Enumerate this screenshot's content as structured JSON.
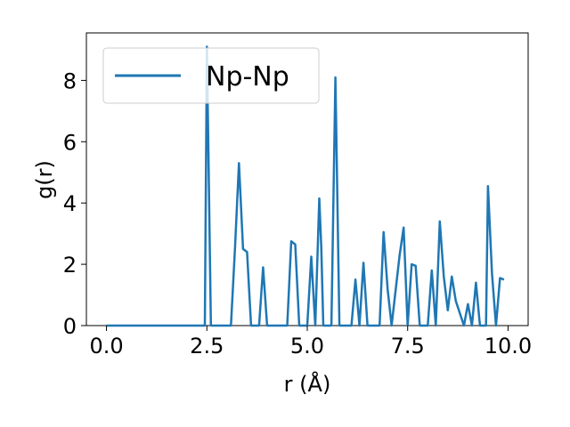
{
  "chart_data": {
    "type": "line",
    "title": "",
    "xlabel": "r (Å)",
    "ylabel": "g(r)",
    "xlim": [
      -0.5,
      10.5
    ],
    "ylim": [
      0,
      9.55
    ],
    "xticks": [
      0,
      2.5,
      5,
      7.5,
      10
    ],
    "xtick_labels": [
      "0.0",
      "2.5",
      "5.0",
      "7.5",
      "10.0"
    ],
    "yticks": [
      0,
      2,
      4,
      6,
      8
    ],
    "ytick_labels": [
      "0",
      "2",
      "4",
      "6",
      "8"
    ],
    "grid": false,
    "legend_position": "top-left",
    "series": [
      {
        "name": "Np-Np",
        "color": "#1f77b4",
        "x": [
          0.0,
          2.35,
          2.45,
          2.5,
          2.6,
          2.65,
          3.1,
          3.2,
          3.3,
          3.4,
          3.5,
          3.6,
          3.8,
          3.9,
          4.0,
          4.3,
          4.5,
          4.6,
          4.7,
          4.8,
          5.0,
          5.1,
          5.2,
          5.3,
          5.35,
          5.4,
          5.6,
          5.7,
          5.8,
          6.1,
          6.2,
          6.3,
          6.4,
          6.5,
          6.6,
          6.8,
          6.9,
          7.0,
          7.1,
          7.3,
          7.4,
          7.5,
          7.6,
          7.7,
          7.8,
          8.0,
          8.1,
          8.2,
          8.3,
          8.4,
          8.5,
          8.6,
          8.7,
          8.9,
          9.0,
          9.1,
          9.2,
          9.3,
          9.45,
          9.5,
          9.6,
          9.7,
          9.8,
          9.9
        ],
        "y": [
          0,
          0,
          0,
          9.1,
          0,
          0,
          0,
          2.5,
          5.3,
          2.5,
          2.4,
          0,
          0,
          1.9,
          0,
          0,
          0,
          2.75,
          2.65,
          0,
          0,
          2.25,
          0,
          4.15,
          2.5,
          0,
          0,
          8.1,
          0,
          0,
          1.5,
          0,
          2.05,
          0,
          0,
          0,
          3.05,
          1.2,
          0,
          2.3,
          3.2,
          0,
          2.0,
          1.95,
          0,
          0,
          1.8,
          0,
          3.4,
          1.6,
          0.5,
          1.6,
          0.8,
          0,
          0.7,
          0,
          1.4,
          0,
          0,
          4.55,
          1.7,
          0,
          1.55,
          1.5
        ]
      }
    ]
  }
}
